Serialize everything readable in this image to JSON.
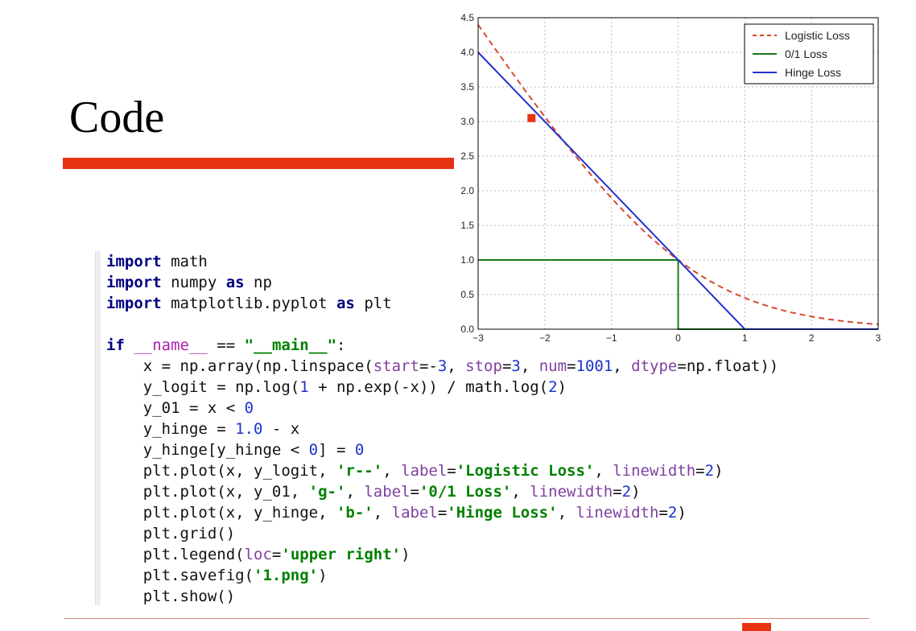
{
  "slide": {
    "title": "Code"
  },
  "code_lines": [
    [
      {
        "t": "import",
        "c": "kw"
      },
      {
        "t": " math"
      }
    ],
    [
      {
        "t": "import",
        "c": "kw"
      },
      {
        "t": " numpy "
      },
      {
        "t": "as",
        "c": "kw"
      },
      {
        "t": " np"
      }
    ],
    [
      {
        "t": "import",
        "c": "kw"
      },
      {
        "t": " matplotlib.pyplot "
      },
      {
        "t": "as",
        "c": "kw"
      },
      {
        "t": " plt"
      }
    ],
    [],
    [
      {
        "t": "if",
        "c": "kw"
      },
      {
        "t": " "
      },
      {
        "t": "__name__",
        "c": "dunder"
      },
      {
        "t": " == "
      },
      {
        "t": "\"__main__\"",
        "c": "str"
      },
      {
        "t": ":"
      }
    ],
    [
      {
        "t": "    x = np.array(np.linspace("
      },
      {
        "t": "start",
        "c": "kwarg"
      },
      {
        "t": "=-"
      },
      {
        "t": "3",
        "c": "num"
      },
      {
        "t": ", "
      },
      {
        "t": "stop",
        "c": "kwarg"
      },
      {
        "t": "="
      },
      {
        "t": "3",
        "c": "num"
      },
      {
        "t": ", "
      },
      {
        "t": "num",
        "c": "kwarg"
      },
      {
        "t": "="
      },
      {
        "t": "1001",
        "c": "num"
      },
      {
        "t": ", "
      },
      {
        "t": "dtype",
        "c": "kwarg"
      },
      {
        "t": "=np.float))"
      }
    ],
    [
      {
        "t": "    y_logit = np.log("
      },
      {
        "t": "1",
        "c": "num"
      },
      {
        "t": " + np.exp(-x)) / math.log("
      },
      {
        "t": "2",
        "c": "num"
      },
      {
        "t": ")"
      }
    ],
    [
      {
        "t": "    y_01 = x < "
      },
      {
        "t": "0",
        "c": "num"
      }
    ],
    [
      {
        "t": "    y_hinge = "
      },
      {
        "t": "1.0",
        "c": "num"
      },
      {
        "t": " - x"
      }
    ],
    [
      {
        "t": "    y_hinge[y_hinge < "
      },
      {
        "t": "0",
        "c": "num"
      },
      {
        "t": "] = "
      },
      {
        "t": "0",
        "c": "num"
      }
    ],
    [
      {
        "t": "    plt.plot(x, y_logit, "
      },
      {
        "t": "'r--'",
        "c": "str"
      },
      {
        "t": ", "
      },
      {
        "t": "label",
        "c": "kwarg"
      },
      {
        "t": "="
      },
      {
        "t": "'Logistic Loss'",
        "c": "str"
      },
      {
        "t": ", "
      },
      {
        "t": "linewidth",
        "c": "kwarg"
      },
      {
        "t": "="
      },
      {
        "t": "2",
        "c": "num"
      },
      {
        "t": ")"
      }
    ],
    [
      {
        "t": "    plt.plot(x, y_01, "
      },
      {
        "t": "'g-'",
        "c": "str"
      },
      {
        "t": ", "
      },
      {
        "t": "label",
        "c": "kwarg"
      },
      {
        "t": "="
      },
      {
        "t": "'0/1 Loss'",
        "c": "str"
      },
      {
        "t": ", "
      },
      {
        "t": "linewidth",
        "c": "kwarg"
      },
      {
        "t": "="
      },
      {
        "t": "2",
        "c": "num"
      },
      {
        "t": ")"
      }
    ],
    [
      {
        "t": "    plt.plot(x, y_hinge, "
      },
      {
        "t": "'b-'",
        "c": "str"
      },
      {
        "t": ", "
      },
      {
        "t": "label",
        "c": "kwarg"
      },
      {
        "t": "="
      },
      {
        "t": "'Hinge Loss'",
        "c": "str"
      },
      {
        "t": ", "
      },
      {
        "t": "linewidth",
        "c": "kwarg"
      },
      {
        "t": "="
      },
      {
        "t": "2",
        "c": "num"
      },
      {
        "t": ")"
      }
    ],
    [
      {
        "t": "    plt.grid()"
      }
    ],
    [
      {
        "t": "    plt.legend("
      },
      {
        "t": "loc",
        "c": "kwarg"
      },
      {
        "t": "="
      },
      {
        "t": "'upper right'",
        "c": "str"
      },
      {
        "t": ")"
      }
    ],
    [
      {
        "t": "    plt.savefig("
      },
      {
        "t": "'1.png'",
        "c": "str"
      },
      {
        "t": ")"
      }
    ],
    [
      {
        "t": "    plt.show()"
      }
    ]
  ],
  "colors": {
    "accent": "#e63312",
    "logistic": "#d9472b",
    "zero_one": "#1a7a1a",
    "hinge": "#2233cc"
  },
  "chart_data": {
    "type": "line",
    "title": "",
    "xlabel": "",
    "ylabel": "",
    "xlim": [
      -3,
      3
    ],
    "ylim": [
      0,
      4.5
    ],
    "xticks": [
      -3,
      -2,
      -1,
      0,
      1,
      2,
      3
    ],
    "xtick_labels": [
      "−3",
      "−2",
      "−1",
      "0",
      "1",
      "2",
      "3"
    ],
    "yticks": [
      0,
      0.5,
      1,
      1.5,
      2,
      2.5,
      3,
      3.5,
      4,
      4.5
    ],
    "ytick_labels": [
      "0.0",
      "0.5",
      "1.0",
      "1.5",
      "2.0",
      "2.5",
      "3.0",
      "3.5",
      "4.0",
      "4.5"
    ],
    "grid": true,
    "legend_position": "top-right",
    "series": [
      {
        "name": "Logistic Loss",
        "style": "dashed",
        "color": "#d9472b",
        "x": [
          -3,
          -2.5,
          -2,
          -1.5,
          -1,
          -0.5,
          0,
          0.5,
          1,
          1.5,
          2,
          2.5,
          3
        ],
        "y": [
          4.37,
          3.74,
          3.13,
          2.54,
          1.99,
          1.43,
          1.0,
          0.68,
          0.45,
          0.29,
          0.18,
          0.11,
          0.07
        ]
      },
      {
        "name": "0/1 Loss",
        "style": "solid",
        "color": "#1a7a1a",
        "x": [
          -3,
          0,
          0,
          3
        ],
        "y": [
          1,
          1,
          0,
          0
        ]
      },
      {
        "name": "Hinge Loss",
        "style": "solid",
        "color": "#2233cc",
        "x": [
          -3,
          1,
          3
        ],
        "y": [
          4,
          0,
          0
        ]
      }
    ],
    "annotations": [
      {
        "type": "marker",
        "x": -2.2,
        "y": 3.05,
        "color": "#e63312"
      }
    ]
  }
}
